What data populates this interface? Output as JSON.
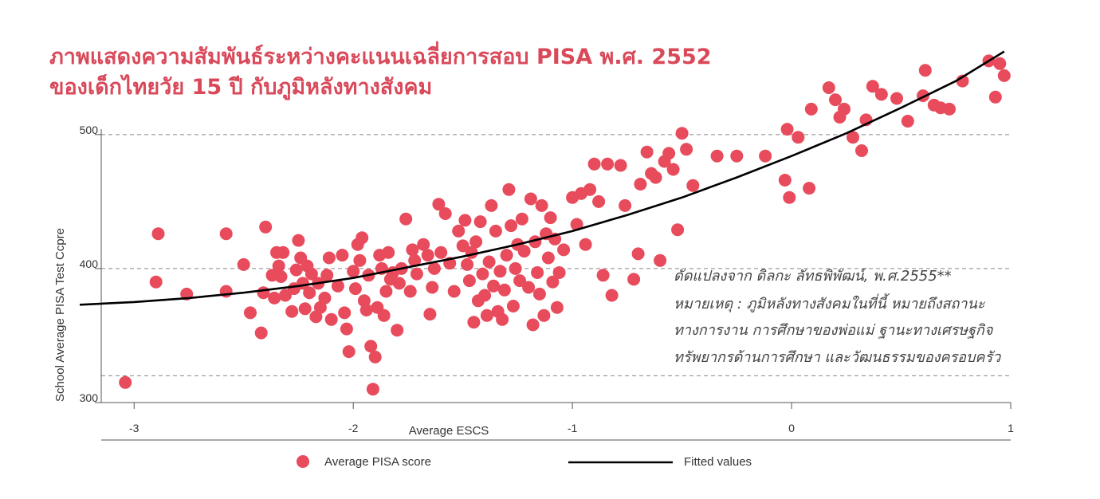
{
  "title_lines": [
    "ภาพแสดงความสัมพันธ์ระหว่างคะแนนเฉลี่ยการสอบ PISA พ.ศ. 2552",
    "ของเด็กไทยวัย 15 ปี กับภูมิหลังทางสังคม"
  ],
  "note_lines": [
    "ดัดแปลงจาก ดิลกะ ลัทธพิพัฒน์, พ.ศ.2555**",
    "หมายเหตุ : ภูมิหลังทางสังคมในที่นี้ หมายถึงสถานะ",
    "ทางการงาน การศึกษาของพ่อแม่ ฐานะทางเศรษฐกิจ",
    "ทรัพยากรด้านการศึกษา และวัฒนธรรมของครอบครัว"
  ],
  "colors": {
    "accent": "#e84b5c",
    "title": "#d9495a",
    "line": "#000000",
    "grid": "#888888"
  },
  "chart_data": {
    "type": "scatter",
    "xlabel": "Average ESCS",
    "ylabel": "School Average PISA Test Ccpre",
    "xlim": [
      -3.15,
      1.0
    ],
    "ylim": [
      300,
      560
    ],
    "x_ticks": [
      -3,
      -2,
      -1,
      0,
      1
    ],
    "x_tick_labels": [
      "-3",
      "-2",
      "-1",
      "0",
      "1"
    ],
    "y_ticks": [
      300,
      400,
      500
    ],
    "y_tick_labels": [
      "300",
      "400",
      "500"
    ],
    "grid_y_dashed": [
      320,
      400,
      500
    ],
    "legend": {
      "placement": "bottom",
      "entries": [
        {
          "label": "Average PISA score",
          "marker": "circle"
        },
        {
          "label": "Fitted values",
          "marker": "line"
        }
      ]
    },
    "fitted_line": {
      "x": [
        -3.25,
        -3.0,
        -2.75,
        -2.5,
        -2.25,
        -2.0,
        -1.75,
        -1.5,
        -1.25,
        -1.0,
        -0.75,
        -0.5,
        -0.25,
        0.0,
        0.25,
        0.5,
        0.75,
        0.97
      ],
      "y": [
        373,
        375,
        378,
        382,
        387,
        393,
        401,
        409,
        418,
        428,
        440,
        453,
        468,
        484,
        501,
        520,
        540,
        562
      ]
    },
    "series": [
      {
        "points": [
          [
            -3.04,
            315
          ],
          [
            -2.9,
            390
          ],
          [
            -2.89,
            426
          ],
          [
            -2.76,
            381
          ],
          [
            -2.58,
            383
          ],
          [
            -2.58,
            426
          ],
          [
            -2.5,
            403
          ],
          [
            -2.47,
            367
          ],
          [
            -2.42,
            352
          ],
          [
            -2.41,
            382
          ],
          [
            -2.4,
            431
          ],
          [
            -2.37,
            395
          ],
          [
            -2.36,
            378
          ],
          [
            -2.35,
            412
          ],
          [
            -2.34,
            402
          ],
          [
            -2.33,
            394
          ],
          [
            -2.32,
            412
          ],
          [
            -2.31,
            380
          ],
          [
            -2.28,
            368
          ],
          [
            -2.27,
            385
          ],
          [
            -2.26,
            399
          ],
          [
            -2.25,
            421
          ],
          [
            -2.24,
            408
          ],
          [
            -2.23,
            389
          ],
          [
            -2.22,
            370
          ],
          [
            -2.21,
            402
          ],
          [
            -2.2,
            382
          ],
          [
            -2.19,
            396
          ],
          [
            -2.17,
            364
          ],
          [
            -2.16,
            389
          ],
          [
            -2.15,
            371
          ],
          [
            -2.13,
            378
          ],
          [
            -2.12,
            395
          ],
          [
            -2.11,
            408
          ],
          [
            -2.1,
            362
          ],
          [
            -2.07,
            387
          ],
          [
            -2.05,
            410
          ],
          [
            -2.04,
            367
          ],
          [
            -2.03,
            355
          ],
          [
            -2.02,
            338
          ],
          [
            -2.0,
            398
          ],
          [
            -1.99,
            385
          ],
          [
            -1.98,
            418
          ],
          [
            -1.97,
            406
          ],
          [
            -1.96,
            423
          ],
          [
            -1.95,
            376
          ],
          [
            -1.94,
            369
          ],
          [
            -1.93,
            395
          ],
          [
            -1.92,
            342
          ],
          [
            -1.91,
            310
          ],
          [
            -1.9,
            334
          ],
          [
            -1.89,
            371
          ],
          [
            -1.88,
            410
          ],
          [
            -1.87,
            400
          ],
          [
            -1.86,
            365
          ],
          [
            -1.85,
            383
          ],
          [
            -1.84,
            412
          ],
          [
            -1.83,
            392
          ],
          [
            -1.82,
            397
          ],
          [
            -1.8,
            354
          ],
          [
            -1.79,
            389
          ],
          [
            -1.78,
            400
          ],
          [
            -1.76,
            437
          ],
          [
            -1.74,
            383
          ],
          [
            -1.73,
            414
          ],
          [
            -1.72,
            406
          ],
          [
            -1.71,
            396
          ],
          [
            -1.68,
            418
          ],
          [
            -1.66,
            410
          ],
          [
            -1.65,
            366
          ],
          [
            -1.64,
            386
          ],
          [
            -1.63,
            400
          ],
          [
            -1.61,
            448
          ],
          [
            -1.6,
            412
          ],
          [
            -1.58,
            441
          ],
          [
            -1.56,
            404
          ],
          [
            -1.54,
            383
          ],
          [
            -1.52,
            428
          ],
          [
            -1.5,
            417
          ],
          [
            -1.49,
            436
          ],
          [
            -1.48,
            403
          ],
          [
            -1.47,
            391
          ],
          [
            -1.46,
            412
          ],
          [
            -1.45,
            360
          ],
          [
            -1.44,
            420
          ],
          [
            -1.43,
            376
          ],
          [
            -1.42,
            435
          ],
          [
            -1.41,
            396
          ],
          [
            -1.4,
            380
          ],
          [
            -1.39,
            365
          ],
          [
            -1.38,
            405
          ],
          [
            -1.37,
            447
          ],
          [
            -1.36,
            387
          ],
          [
            -1.35,
            428
          ],
          [
            -1.34,
            368
          ],
          [
            -1.33,
            398
          ],
          [
            -1.32,
            362
          ],
          [
            -1.31,
            384
          ],
          [
            -1.3,
            410
          ],
          [
            -1.29,
            459
          ],
          [
            -1.28,
            432
          ],
          [
            -1.27,
            372
          ],
          [
            -1.26,
            400
          ],
          [
            -1.25,
            418
          ],
          [
            -1.24,
            391
          ],
          [
            -1.23,
            437
          ],
          [
            -1.22,
            413
          ],
          [
            -1.2,
            386
          ],
          [
            -1.19,
            452
          ],
          [
            -1.18,
            358
          ],
          [
            -1.17,
            420
          ],
          [
            -1.16,
            397
          ],
          [
            -1.15,
            381
          ],
          [
            -1.14,
            447
          ],
          [
            -1.13,
            365
          ],
          [
            -1.12,
            426
          ],
          [
            -1.11,
            408
          ],
          [
            -1.1,
            438
          ],
          [
            -1.09,
            390
          ],
          [
            -1.08,
            422
          ],
          [
            -1.07,
            371
          ],
          [
            -1.06,
            397
          ],
          [
            -1.04,
            414
          ],
          [
            -1.0,
            453
          ],
          [
            -0.98,
            433
          ],
          [
            -0.96,
            456
          ],
          [
            -0.94,
            418
          ],
          [
            -0.92,
            459
          ],
          [
            -0.9,
            478
          ],
          [
            -0.88,
            450
          ],
          [
            -0.86,
            395
          ],
          [
            -0.84,
            478
          ],
          [
            -0.82,
            380
          ],
          [
            -0.78,
            477
          ],
          [
            -0.76,
            447
          ],
          [
            -0.72,
            392
          ],
          [
            -0.7,
            411
          ],
          [
            -0.69,
            463
          ],
          [
            -0.66,
            487
          ],
          [
            -0.64,
            471
          ],
          [
            -0.62,
            468
          ],
          [
            -0.6,
            406
          ],
          [
            -0.58,
            480
          ],
          [
            -0.56,
            486
          ],
          [
            -0.54,
            474
          ],
          [
            -0.52,
            429
          ],
          [
            -0.5,
            501
          ],
          [
            -0.48,
            489
          ],
          [
            -0.45,
            462
          ],
          [
            -0.34,
            484
          ],
          [
            -0.25,
            484
          ],
          [
            -0.12,
            484
          ],
          [
            -0.03,
            466
          ],
          [
            -0.02,
            504
          ],
          [
            -0.01,
            453
          ],
          [
            0.03,
            498
          ],
          [
            0.08,
            460
          ],
          [
            0.09,
            519
          ],
          [
            0.17,
            535
          ],
          [
            0.2,
            526
          ],
          [
            0.22,
            513
          ],
          [
            0.24,
            519
          ],
          [
            0.28,
            498
          ],
          [
            0.32,
            488
          ],
          [
            0.34,
            511
          ],
          [
            0.37,
            536
          ],
          [
            0.41,
            530
          ],
          [
            0.48,
            527
          ],
          [
            0.53,
            510
          ],
          [
            0.6,
            529
          ],
          [
            0.61,
            548
          ],
          [
            0.65,
            522
          ],
          [
            0.68,
            520
          ],
          [
            0.72,
            519
          ],
          [
            0.78,
            540
          ],
          [
            0.9,
            555
          ],
          [
            0.93,
            528
          ],
          [
            0.95,
            553
          ],
          [
            0.97,
            544
          ]
        ]
      }
    ]
  }
}
